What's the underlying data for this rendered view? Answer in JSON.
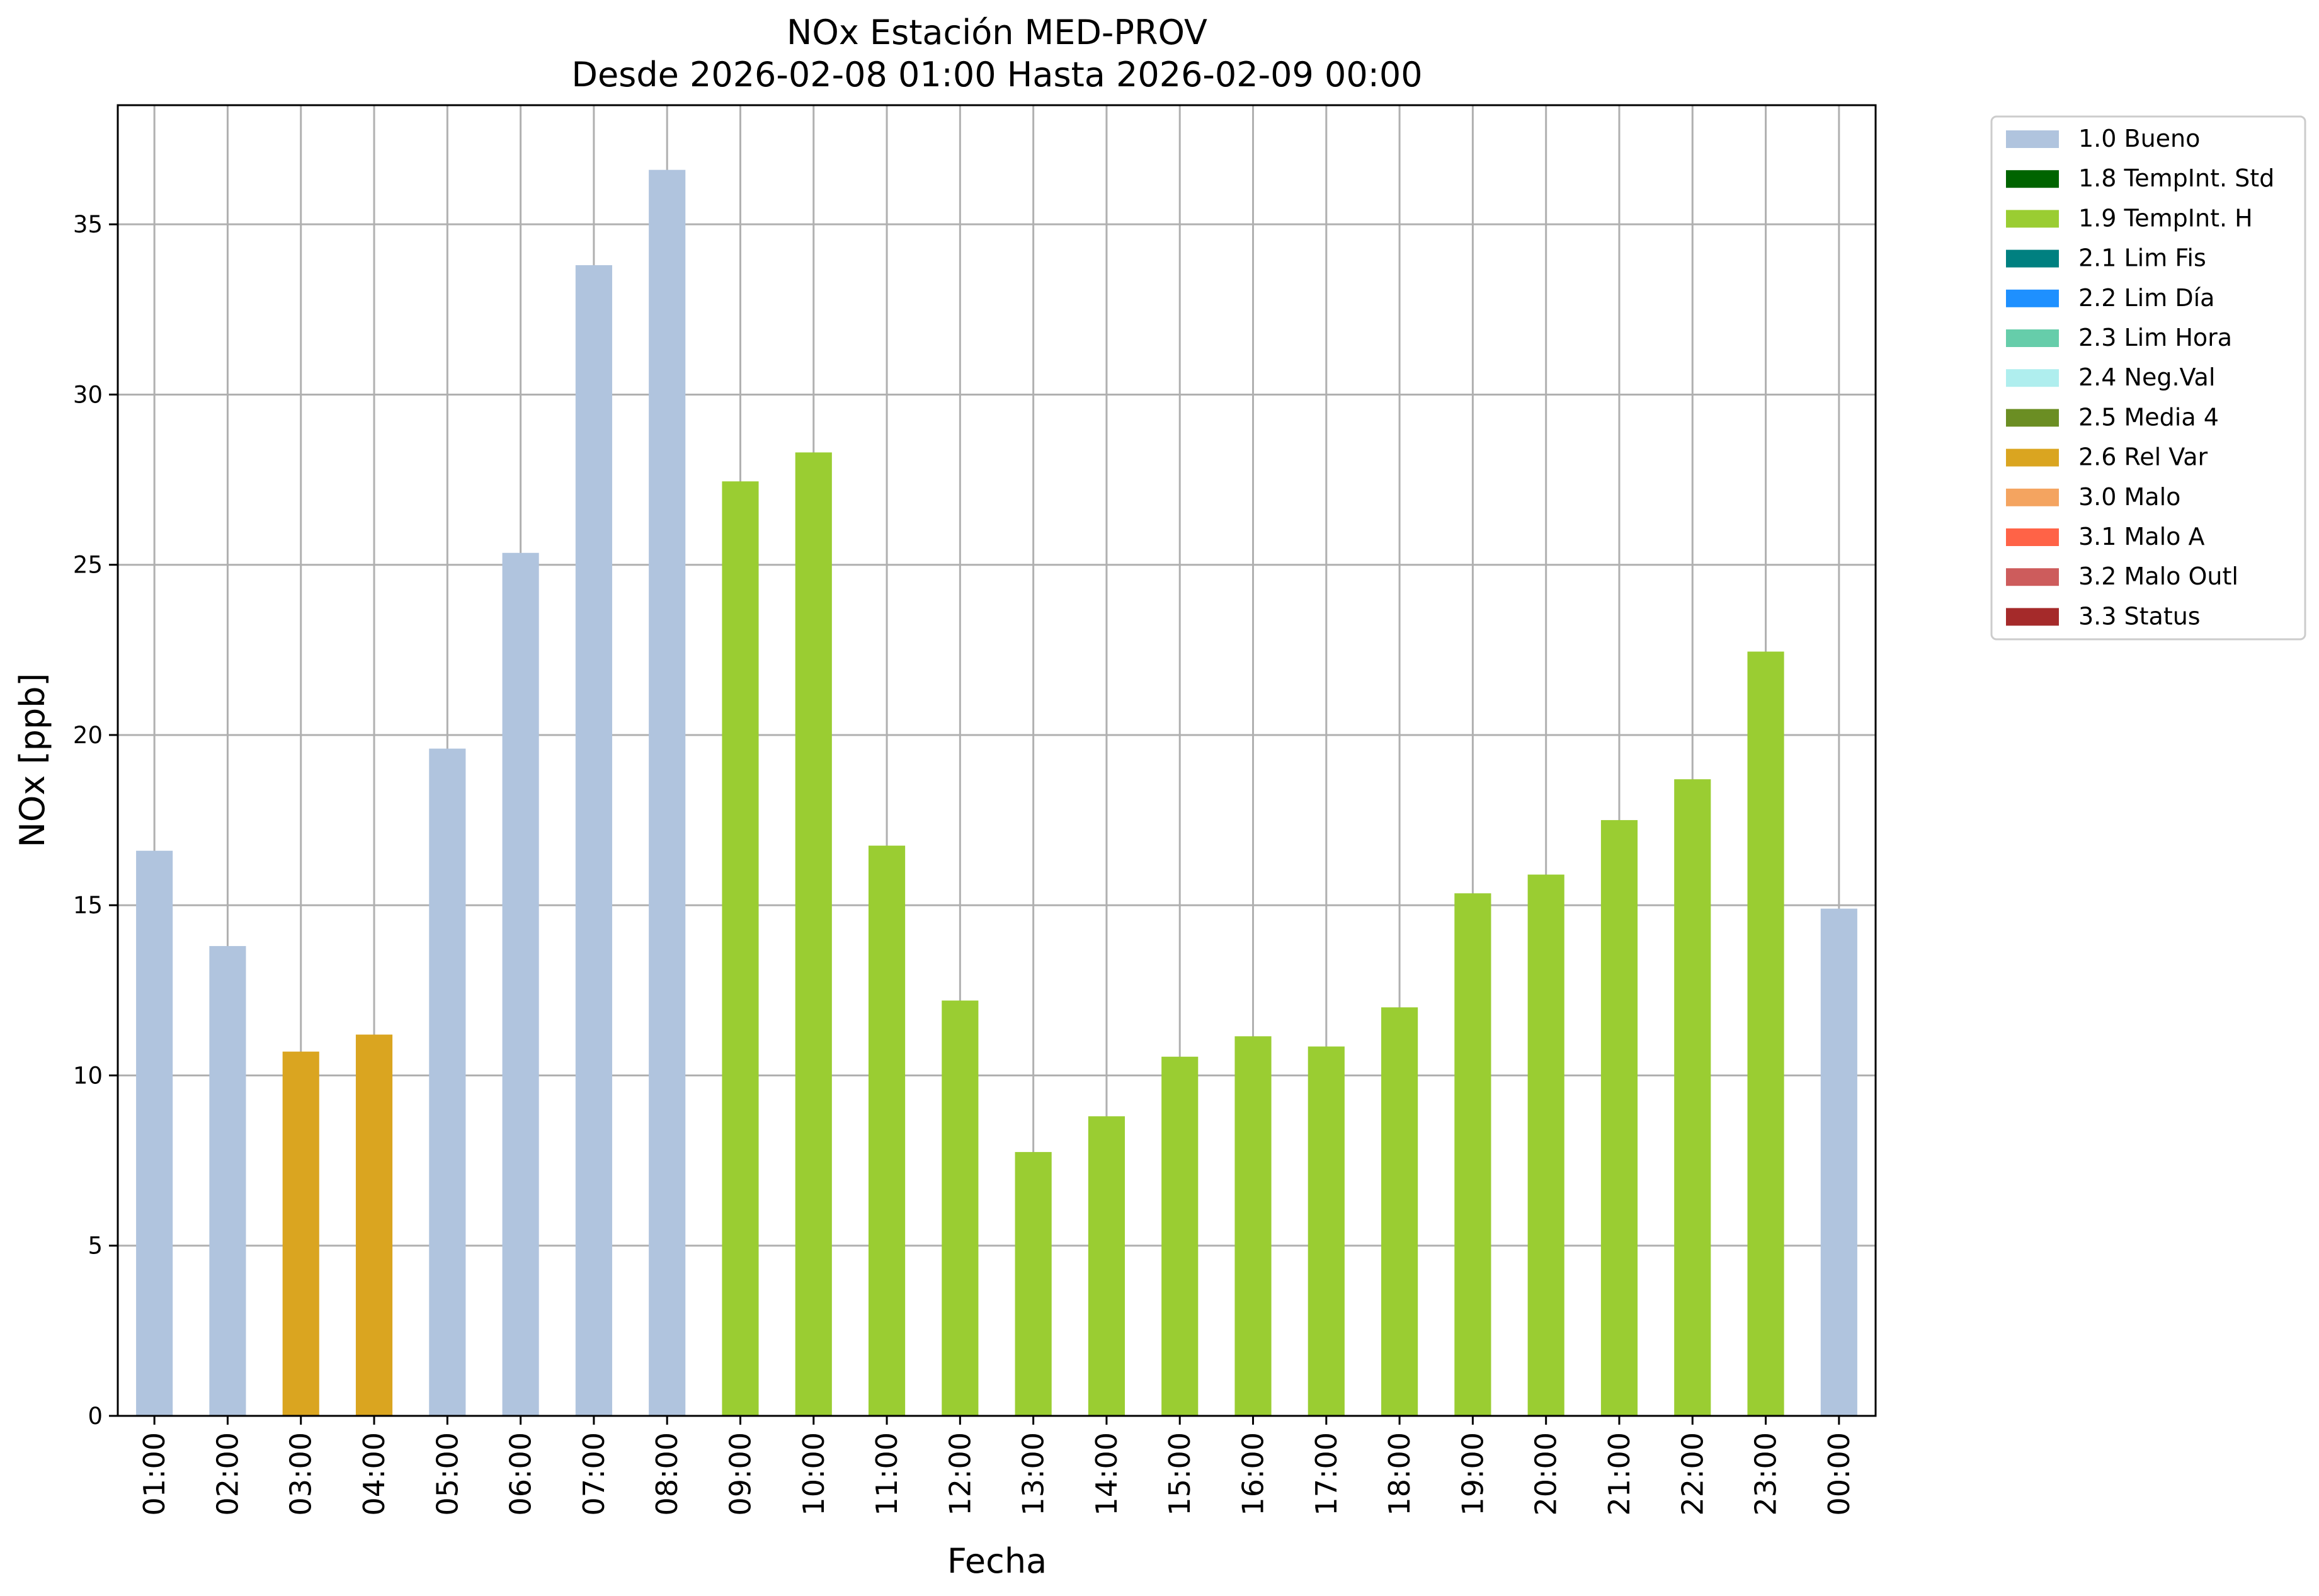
{
  "chart_data": {
    "type": "bar",
    "title": "NOx Estación MED-PROV",
    "subtitle": "Desde 2026-02-08 01:00 Hasta 2026-02-09 00:00",
    "xlabel": "Fecha",
    "ylabel": "NOx [ppb]",
    "ylim": [
      0,
      38.5
    ],
    "yticks": [
      0,
      5,
      10,
      15,
      20,
      25,
      30,
      35
    ],
    "grid": true,
    "legend_position": "outside-top-right",
    "categories": [
      "01:00",
      "02:00",
      "03:00",
      "04:00",
      "05:00",
      "06:00",
      "07:00",
      "08:00",
      "09:00",
      "10:00",
      "11:00",
      "12:00",
      "13:00",
      "14:00",
      "15:00",
      "16:00",
      "17:00",
      "18:00",
      "19:00",
      "20:00",
      "21:00",
      "22:00",
      "23:00",
      "00:00"
    ],
    "values": [
      16.6,
      13.8,
      10.7,
      11.2,
      19.6,
      25.35,
      33.8,
      36.6,
      27.45,
      28.3,
      16.75,
      12.2,
      7.75,
      8.8,
      10.55,
      11.15,
      10.85,
      12.0,
      15.35,
      15.9,
      17.5,
      18.7,
      22.45,
      14.9
    ],
    "flags": [
      "1.0",
      "1.0",
      "2.6",
      "2.6",
      "1.0",
      "1.0",
      "1.0",
      "1.0",
      "1.9",
      "1.9",
      "1.9",
      "1.9",
      "1.9",
      "1.9",
      "1.9",
      "1.9",
      "1.9",
      "1.9",
      "1.9",
      "1.9",
      "1.9",
      "1.9",
      "1.9",
      "1.0"
    ],
    "legend": [
      {
        "code": "1.0",
        "label": "1.0 Bueno",
        "color": "#b0c4de"
      },
      {
        "code": "1.8",
        "label": "1.8 TempInt. Std",
        "color": "#006400"
      },
      {
        "code": "1.9",
        "label": "1.9 TempInt. H",
        "color": "#9acd32"
      },
      {
        "code": "2.1",
        "label": "2.1 Lim Fis",
        "color": "#008080"
      },
      {
        "code": "2.2",
        "label": "2.2 Lim Día",
        "color": "#1e90ff"
      },
      {
        "code": "2.3",
        "label": "2.3 Lim Hora",
        "color": "#66cdaa"
      },
      {
        "code": "2.4",
        "label": "2.4 Neg.Val",
        "color": "#afeeee"
      },
      {
        "code": "2.5",
        "label": "2.5 Media 4",
        "color": "#6b8e23"
      },
      {
        "code": "2.6",
        "label": "2.6 Rel Var",
        "color": "#daa520"
      },
      {
        "code": "3.0",
        "label": "3.0 Malo",
        "color": "#f4a460"
      },
      {
        "code": "3.1",
        "label": "3.1 Malo A",
        "color": "#ff6347"
      },
      {
        "code": "3.2",
        "label": "3.2 Malo Outl",
        "color": "#cd5c5c"
      },
      {
        "code": "3.3",
        "label": "3.3 Status",
        "color": "#a52a2a"
      }
    ]
  }
}
